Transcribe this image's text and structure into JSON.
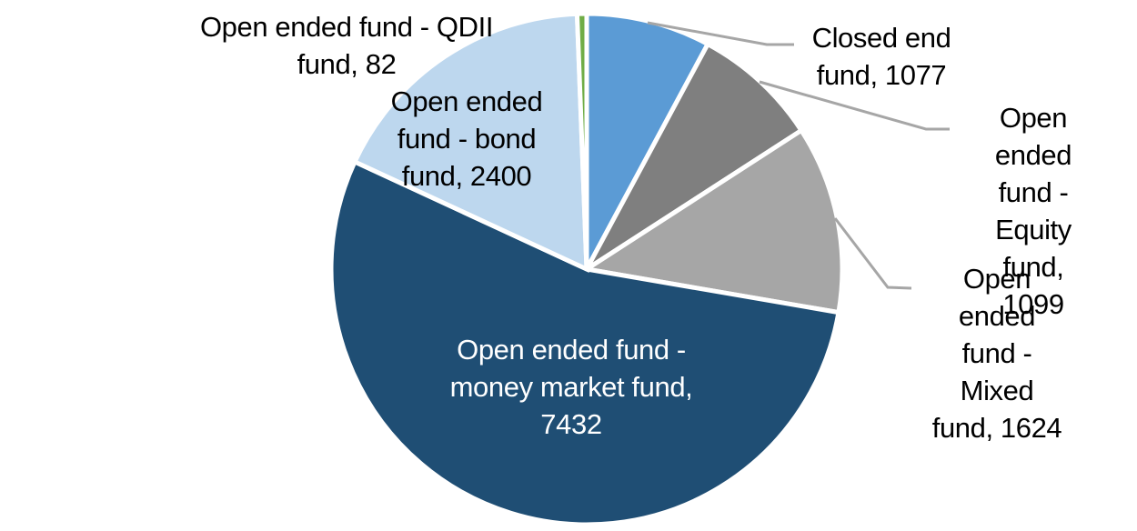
{
  "chart_data": {
    "type": "pie",
    "title": "",
    "legend": "none",
    "start_angle_deg": 0,
    "direction": "clockwise",
    "background": "#FFFFFF",
    "slice_gap_color": "#FFFFFF",
    "leader_line_color": "#A6A6A6",
    "label_text_color": "#000000",
    "inside_label_text_color": "#FFFFFF",
    "segments": [
      {
        "name": "Closed end fund",
        "value": 1077,
        "color": "#5B9BD5",
        "label_text": "Closed end\nfund, 1077",
        "label_placement": "outside"
      },
      {
        "name": "Open ended fund - Equity fund",
        "value": 1099,
        "color": "#7F7F7F",
        "label_text": "Open ended\nfund - Equity\nfund, 1099",
        "label_placement": "outside"
      },
      {
        "name": "Open ended fund - Mixed fund",
        "value": 1624,
        "color": "#A6A6A6",
        "label_text": "Open ended\nfund - Mixed\nfund, 1624",
        "label_placement": "outside"
      },
      {
        "name": "Open ended fund - money market fund",
        "value": 7432,
        "color": "#1F4E74",
        "label_text": "Open ended fund -\nmoney market fund,\n7432",
        "label_placement": "inside"
      },
      {
        "name": "Open ended fund - bond fund",
        "value": 2400,
        "color": "#BDD7EE",
        "label_text": "Open ended\nfund - bond\nfund, 2400",
        "label_placement": "inside"
      },
      {
        "name": "Open ended fund - QDII fund",
        "value": 82,
        "color": "#70AD47",
        "label_text": "Open ended fund - QDII\nfund, 82",
        "label_placement": "outside"
      }
    ]
  }
}
